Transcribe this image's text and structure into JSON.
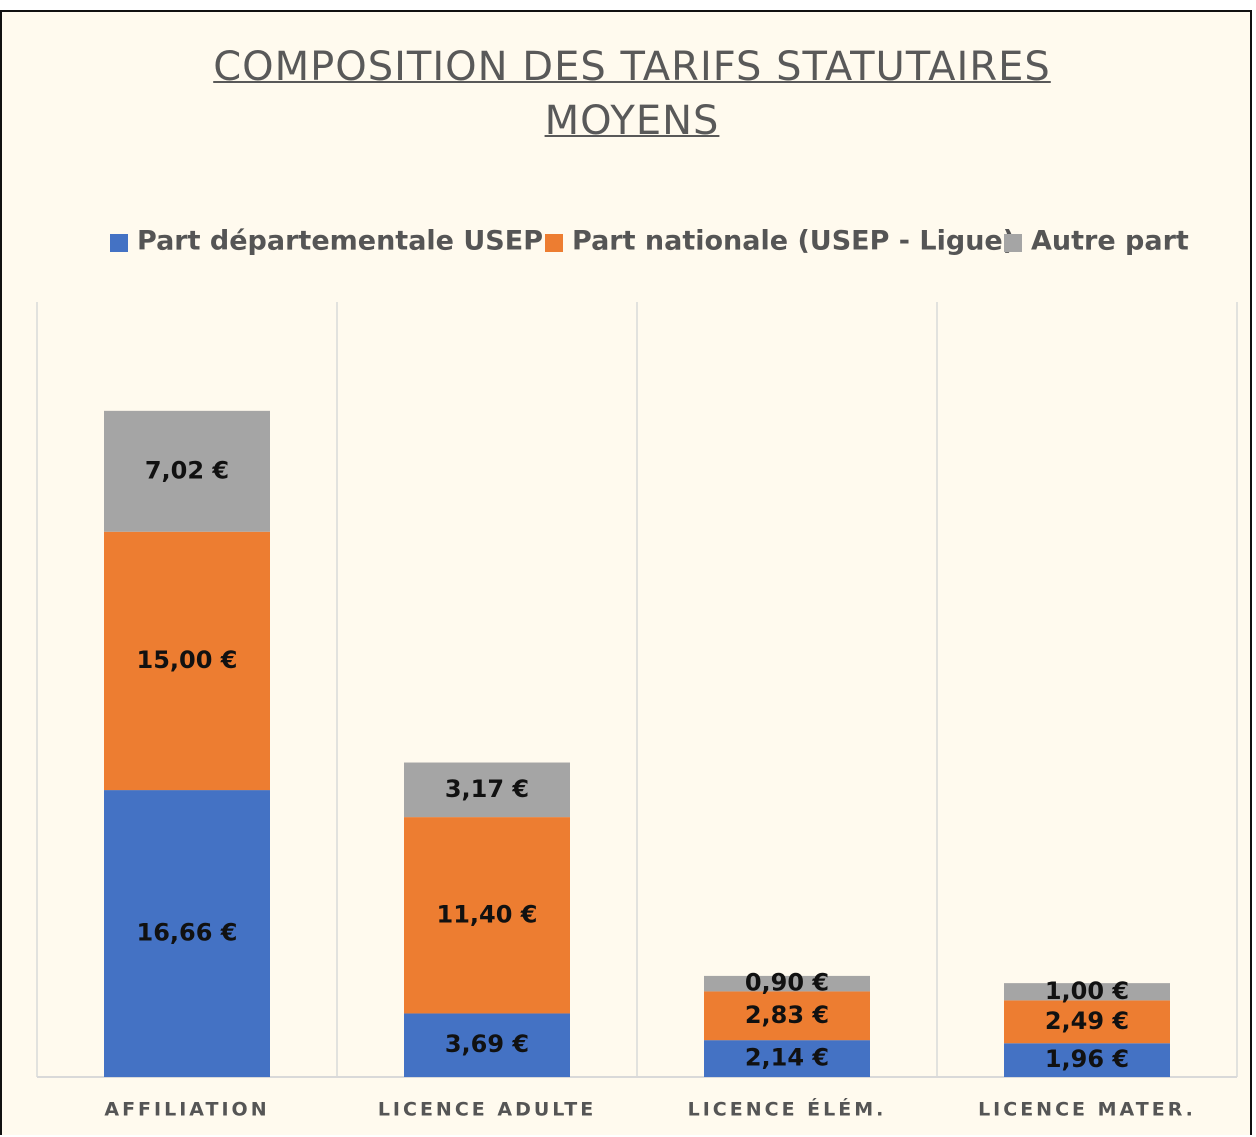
{
  "chart_data": {
    "type": "stacked-bar",
    "title": "COMPOSITION DES TARIFS STATUTAIRES MOYENS",
    "categories": [
      "AFFILIATION",
      "LICENCE ADULTE",
      "LICENCE ÉLÉM.",
      "LICENCE MATER."
    ],
    "series": [
      {
        "name": "Part départementale USEP",
        "color": "#4472c4",
        "values": [
          16.66,
          3.69,
          2.14,
          1.96
        ],
        "value_labels": [
          "16,66 €",
          "3,69 €",
          "2,14 €",
          "1,96 €"
        ]
      },
      {
        "name": "Part nationale (USEP - Ligue)",
        "color": "#ed7d31",
        "values": [
          15.0,
          11.4,
          2.83,
          2.49
        ],
        "value_labels": [
          "15,00 €",
          "11,40 €",
          "2,83 €",
          "2,49 €"
        ]
      },
      {
        "name": "Autre part",
        "color": "#a5a5a5",
        "values": [
          7.02,
          3.17,
          0.9,
          1.0
        ],
        "value_labels": [
          "7,02 €",
          "3,17 €",
          "0,90 €",
          "1,00 €"
        ]
      }
    ],
    "ylim": [
      0,
      45
    ],
    "legend": "top"
  }
}
